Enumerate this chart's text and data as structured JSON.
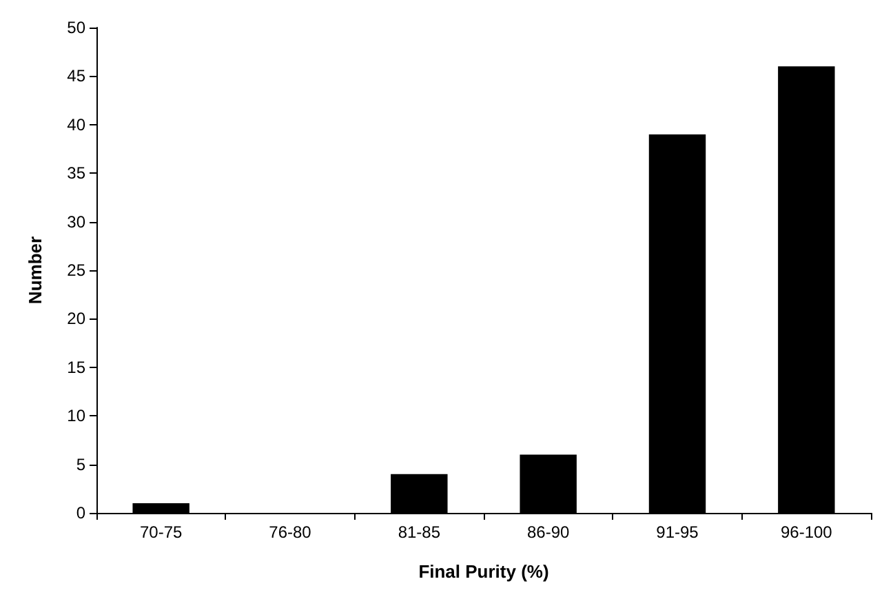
{
  "chart_data": {
    "type": "bar",
    "xlabel": "Final Purity (%)",
    "ylabel": "Number",
    "categories": [
      "70-75",
      "76-80",
      "81-85",
      "86-90",
      "91-95",
      "96-100"
    ],
    "values": [
      1,
      0,
      4,
      6,
      39,
      46
    ],
    "color": "#000000",
    "ylim": [
      0,
      50
    ],
    "yticks": [
      0,
      5,
      10,
      15,
      20,
      25,
      30,
      35,
      40,
      45,
      50
    ],
    "grid": false
  }
}
